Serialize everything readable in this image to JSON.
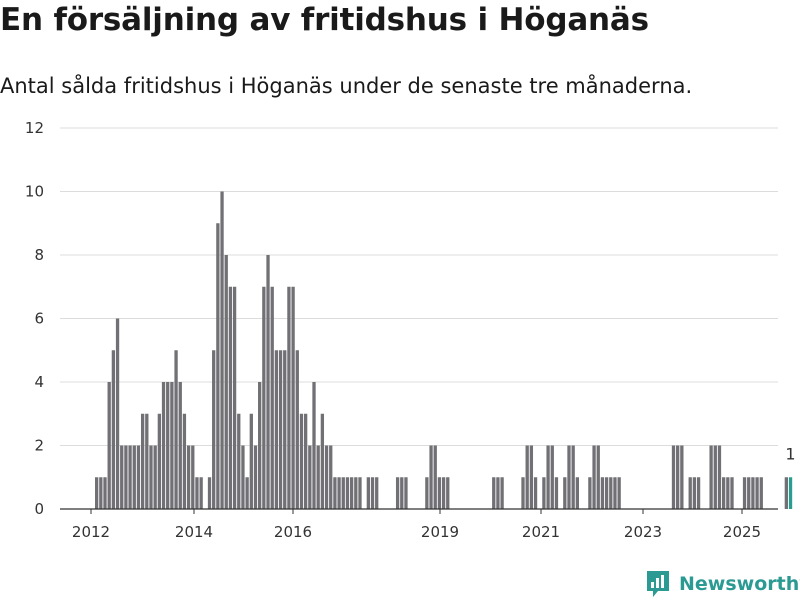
{
  "title": "En försäljning av fritidshus i Höganäs",
  "subtitle": "Antal sålda fritidshus i Höganäs under de senaste tre månaderna.",
  "brand": {
    "name": "Newsworthy",
    "logo_icon": "newsworthy-logo-icon"
  },
  "colors": {
    "bar": "#717075",
    "highlight": "#2a9d93",
    "grid": "#dcdcdc",
    "axis": "#333333"
  },
  "chart_data": {
    "type": "bar",
    "title": "En försäljning av fritidshus i Höganäs",
    "xlabel": "",
    "ylabel": "",
    "ylim": [
      0,
      12
    ],
    "yticks": [
      0,
      2,
      4,
      6,
      8,
      10,
      12
    ],
    "xticks": [
      "2012",
      "2014",
      "2016",
      "2019",
      "2021",
      "2023",
      "2025"
    ],
    "grid": true,
    "legend": "none",
    "highlight_label": "1",
    "series": [
      {
        "values": [
          1,
          1,
          1,
          4,
          5,
          6,
          2,
          2,
          2,
          2,
          2,
          3,
          3,
          2,
          2,
          3,
          4,
          4,
          4,
          5,
          4,
          3,
          2,
          2,
          1,
          1,
          0,
          1,
          5,
          9,
          10,
          8,
          7,
          7,
          3,
          2,
          1,
          3,
          2,
          4,
          7,
          8,
          7,
          5,
          5,
          5,
          7,
          7,
          5,
          3,
          3,
          2,
          4,
          2,
          3,
          2,
          2,
          1,
          1,
          1,
          1,
          1,
          1,
          1,
          0,
          1,
          1,
          1,
          0,
          0,
          0,
          0,
          1,
          1,
          1,
          0,
          0,
          0,
          0,
          1,
          2,
          2,
          1,
          1,
          1,
          0,
          0,
          0,
          0,
          0,
          0,
          0,
          0,
          0,
          0,
          1,
          1,
          1,
          0,
          0,
          0,
          0,
          1,
          2,
          2,
          1,
          0,
          1,
          2,
          2,
          1,
          0,
          1,
          2,
          2,
          1,
          0,
          0,
          1,
          2,
          2,
          1,
          1,
          1,
          1,
          1,
          0,
          0,
          0,
          0,
          0,
          0,
          0,
          0,
          0,
          0,
          0,
          0,
          2,
          2,
          2,
          0,
          1,
          1,
          1,
          0,
          0,
          2,
          2,
          2,
          1,
          1,
          1,
          0,
          0,
          1,
          1,
          1,
          1,
          1,
          0,
          0,
          0,
          0,
          0,
          1,
          1
        ]
      }
    ]
  }
}
